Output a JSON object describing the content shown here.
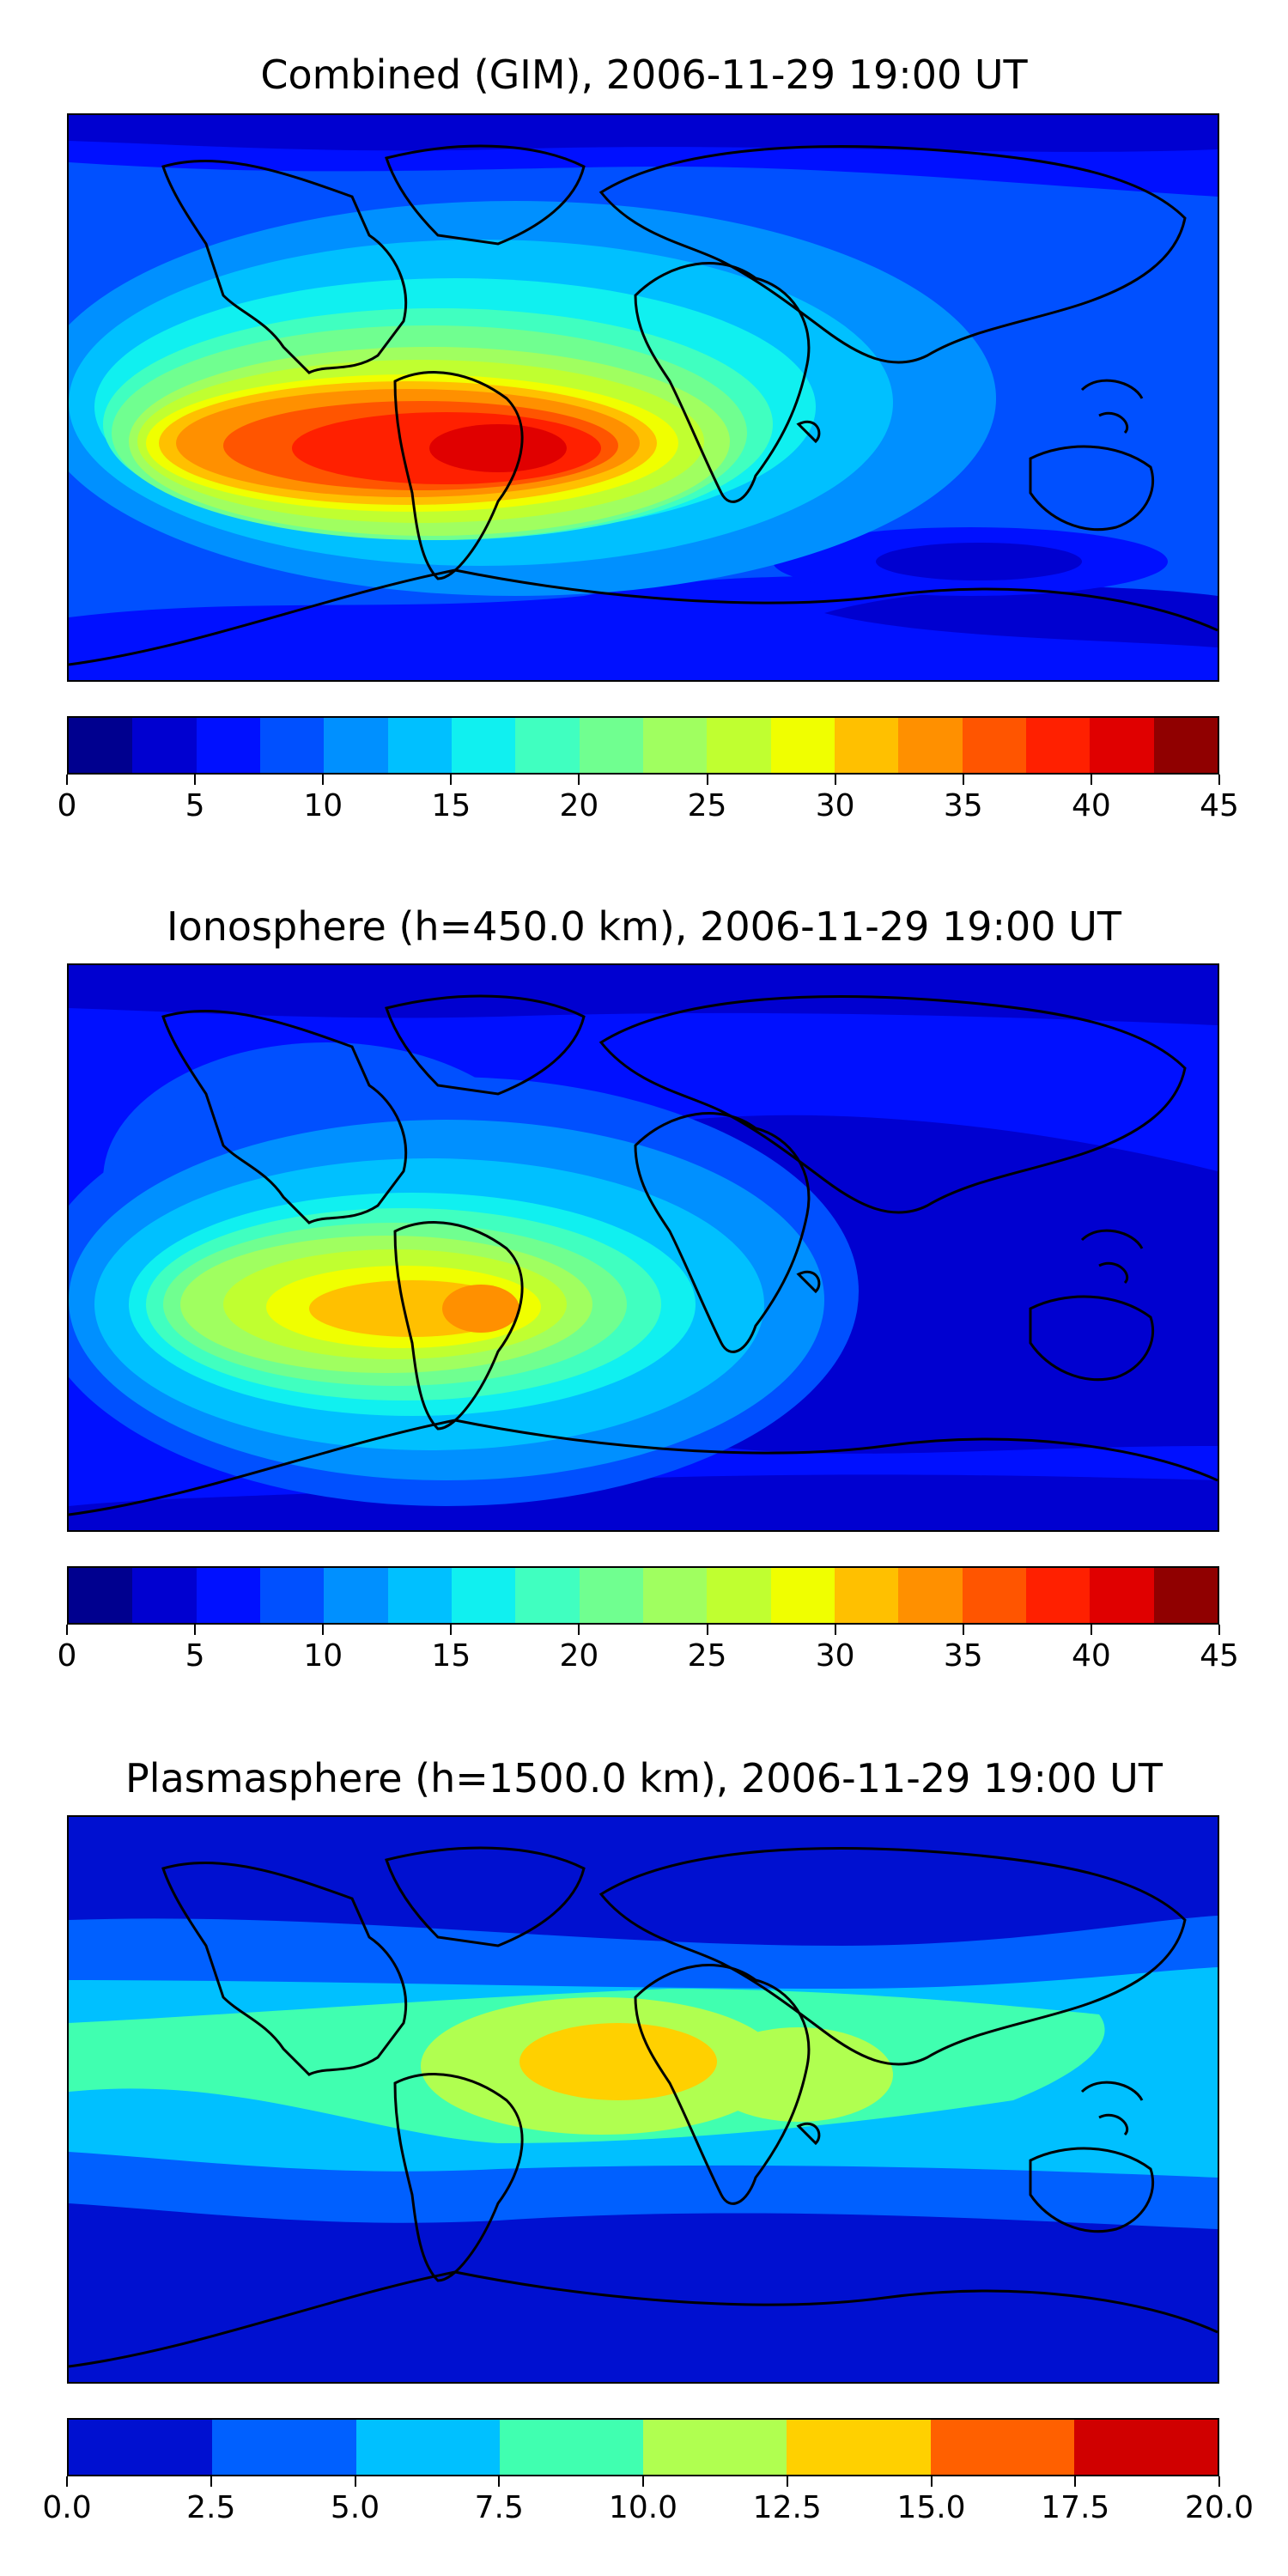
{
  "maps": [
    {
      "title": "Combined (GIM), 2006-11-29 19:00 UT",
      "colorbar": {
        "ticks": [
          "0",
          "5",
          "10",
          "15",
          "20",
          "25",
          "30",
          "35",
          "40",
          "45"
        ],
        "colors": [
          "#00008f",
          "#0000d0",
          "#0010ff",
          "#0050ff",
          "#0090ff",
          "#00c0ff",
          "#10f0f0",
          "#40ffc0",
          "#70ff90",
          "#a0ff60",
          "#c0ff30",
          "#f0ff00",
          "#ffc000",
          "#ff9000",
          "#ff5500",
          "#ff2000",
          "#e00000",
          "#900000"
        ]
      }
    },
    {
      "title": "Ionosphere  (h=450.0 km), 2006-11-29 19:00 UT",
      "colorbar": {
        "ticks": [
          "0",
          "5",
          "10",
          "15",
          "20",
          "25",
          "30",
          "35",
          "40",
          "45"
        ],
        "colors": [
          "#00008f",
          "#0000d0",
          "#0010ff",
          "#0050ff",
          "#0090ff",
          "#00c0ff",
          "#10f0f0",
          "#40ffc0",
          "#70ff90",
          "#a0ff60",
          "#c0ff30",
          "#f0ff00",
          "#ffc000",
          "#ff9000",
          "#ff5500",
          "#ff2000",
          "#e00000",
          "#900000"
        ]
      }
    },
    {
      "title": "Plasmasphere (h=1500.0 km), 2006-11-29 19:00 UT",
      "colorbar": {
        "ticks": [
          "0.0",
          "2.5",
          "5.0",
          "7.5",
          "10.0",
          "12.5",
          "15.0",
          "17.5",
          "20.0"
        ],
        "colors": [
          "#0010d0",
          "#0060ff",
          "#00c0ff",
          "#40ffb0",
          "#b0ff50",
          "#ffd000",
          "#ff6000",
          "#d00000"
        ]
      }
    }
  ]
}
